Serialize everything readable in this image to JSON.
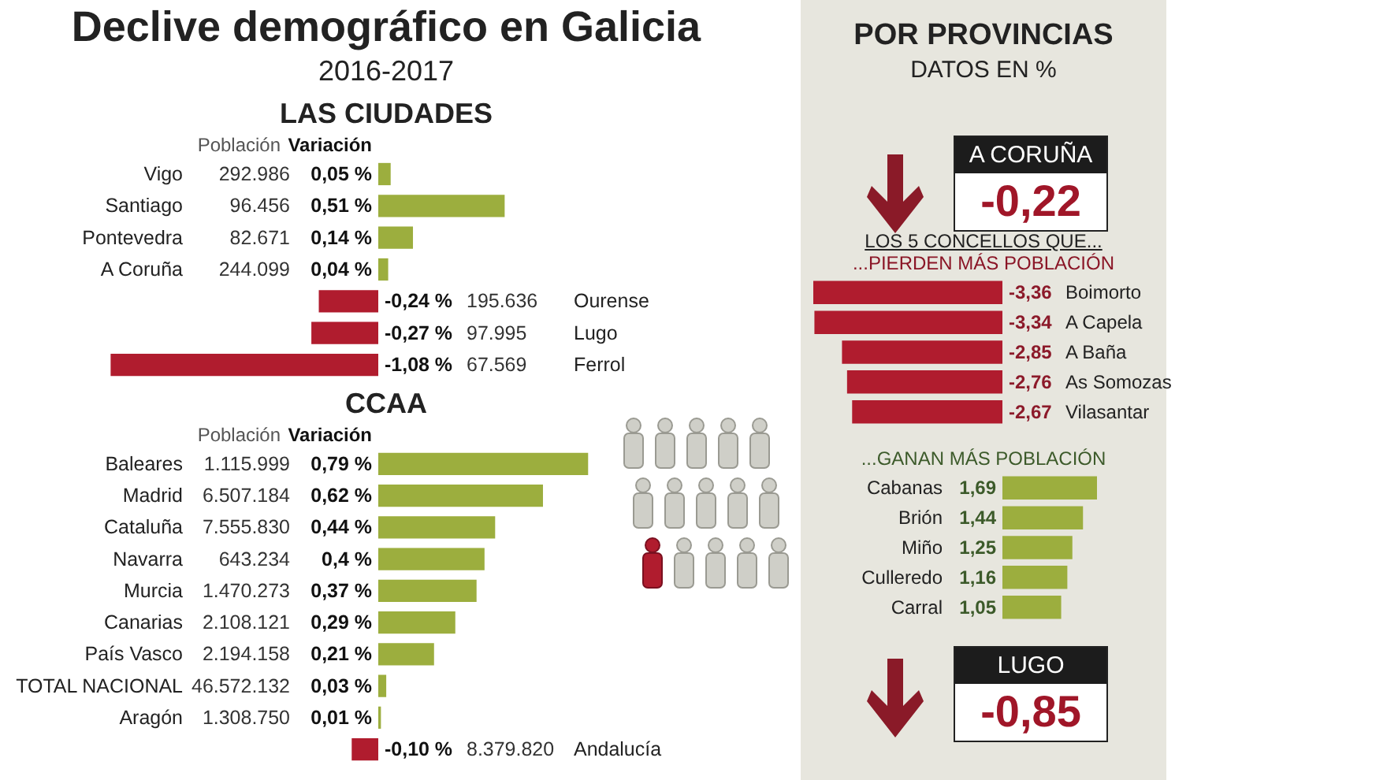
{
  "chart_data": [
    {
      "type": "other",
      "title": "Declive demográfico en Galicia",
      "subtitle": "2016-2017"
    },
    {
      "type": "bar",
      "title": "LAS CIUDADES",
      "orientation": "horizontal",
      "categories": [
        "Vigo",
        "Santiago",
        "Pontevedra",
        "A Coruña",
        "Ourense",
        "Lugo",
        "Ferrol"
      ],
      "values": [
        0.05,
        0.51,
        0.14,
        0.04,
        -0.24,
        -0.27,
        -1.08
      ],
      "colors": [
        "#9cae3e",
        "#9cae3e",
        "#9cae3e",
        "#9cae3e",
        "#b01c2e",
        "#b01c2e",
        "#b01c2e"
      ],
      "value_labels": [
        "0,05 %",
        "0,51 %",
        "0,14 %",
        "0,04 %",
        "-0,24 %",
        "-0,27 %",
        "-1,08 %"
      ],
      "annotations": [
        "Población",
        "Variación",
        "292.986",
        "96.456",
        "82.671",
        "244.099",
        "195.636",
        "97.995",
        "67.569"
      ]
    },
    {
      "type": "bar",
      "title": "CCAA",
      "orientation": "horizontal",
      "categories": [
        "Baleares",
        "Madrid",
        "Cataluña",
        "Navarra",
        "Murcia",
        "Canarias",
        "País Vasco",
        "TOTAL NACIONAL",
        "Aragón",
        "Andalucía"
      ],
      "values": [
        0.79,
        0.62,
        0.44,
        0.4,
        0.37,
        0.29,
        0.21,
        0.03,
        0.01,
        -0.1
      ],
      "colors": [
        "#9cae3e",
        "#9cae3e",
        "#9cae3e",
        "#9cae3e",
        "#9cae3e",
        "#9cae3e",
        "#9cae3e",
        "#9cae3e",
        "#9cae3e",
        "#b01c2e"
      ],
      "value_labels": [
        "0,79 %",
        "0,62 %",
        "0,44 %",
        "0,4 %",
        "0,37 %",
        "0,29 %",
        "0,21 %",
        "0,03 %",
        "0,01 %",
        "-0,10 %"
      ],
      "annotations": [
        "Población",
        "Variación",
        "1.115.999",
        "6.507.184",
        "7.555.830",
        "643.234",
        "1.470.273",
        "2.108.121",
        "2.194.158",
        "46.572.132",
        "1.308.750",
        "8.379.820"
      ]
    },
    {
      "type": "other",
      "title": "POR PROVINCIAS",
      "subtitle": "DATOS EN %",
      "annotations": [
        "A CORUÑA",
        "-0,22"
      ]
    },
    {
      "type": "bar",
      "title": "LOS 5 CONCELLOS QUE...",
      "subtitle": "...PIERDEN MÁS POBLACIÓN",
      "orientation": "horizontal",
      "categories": [
        "Boimorto",
        "A Capela",
        "A Baña",
        "As Somozas",
        "Vilasantar"
      ],
      "values": [
        -3.36,
        -3.34,
        -2.85,
        -2.76,
        -2.67
      ],
      "colors": [
        "#b01c2e",
        "#b01c2e",
        "#b01c2e",
        "#b01c2e",
        "#b01c2e"
      ],
      "value_labels": [
        "-3,36",
        "-3,34",
        "-2,85",
        "-2,76",
        "-2,67"
      ]
    },
    {
      "type": "bar",
      "title": "...GANAN MÁS POBLACIÓN",
      "orientation": "horizontal",
      "categories": [
        "Cabanas",
        "Brión",
        "Miño",
        "Culleredo",
        "Carral"
      ],
      "values": [
        1.69,
        1.44,
        1.25,
        1.16,
        1.05
      ],
      "colors": [
        "#9cae3e",
        "#9cae3e",
        "#9cae3e",
        "#9cae3e",
        "#9cae3e"
      ],
      "value_labels": [
        "1,69",
        "1,44",
        "1,25",
        "1,16",
        "1,05"
      ]
    },
    {
      "type": "other",
      "annotations": [
        "LUGO",
        "-0,85"
      ]
    }
  ]
}
